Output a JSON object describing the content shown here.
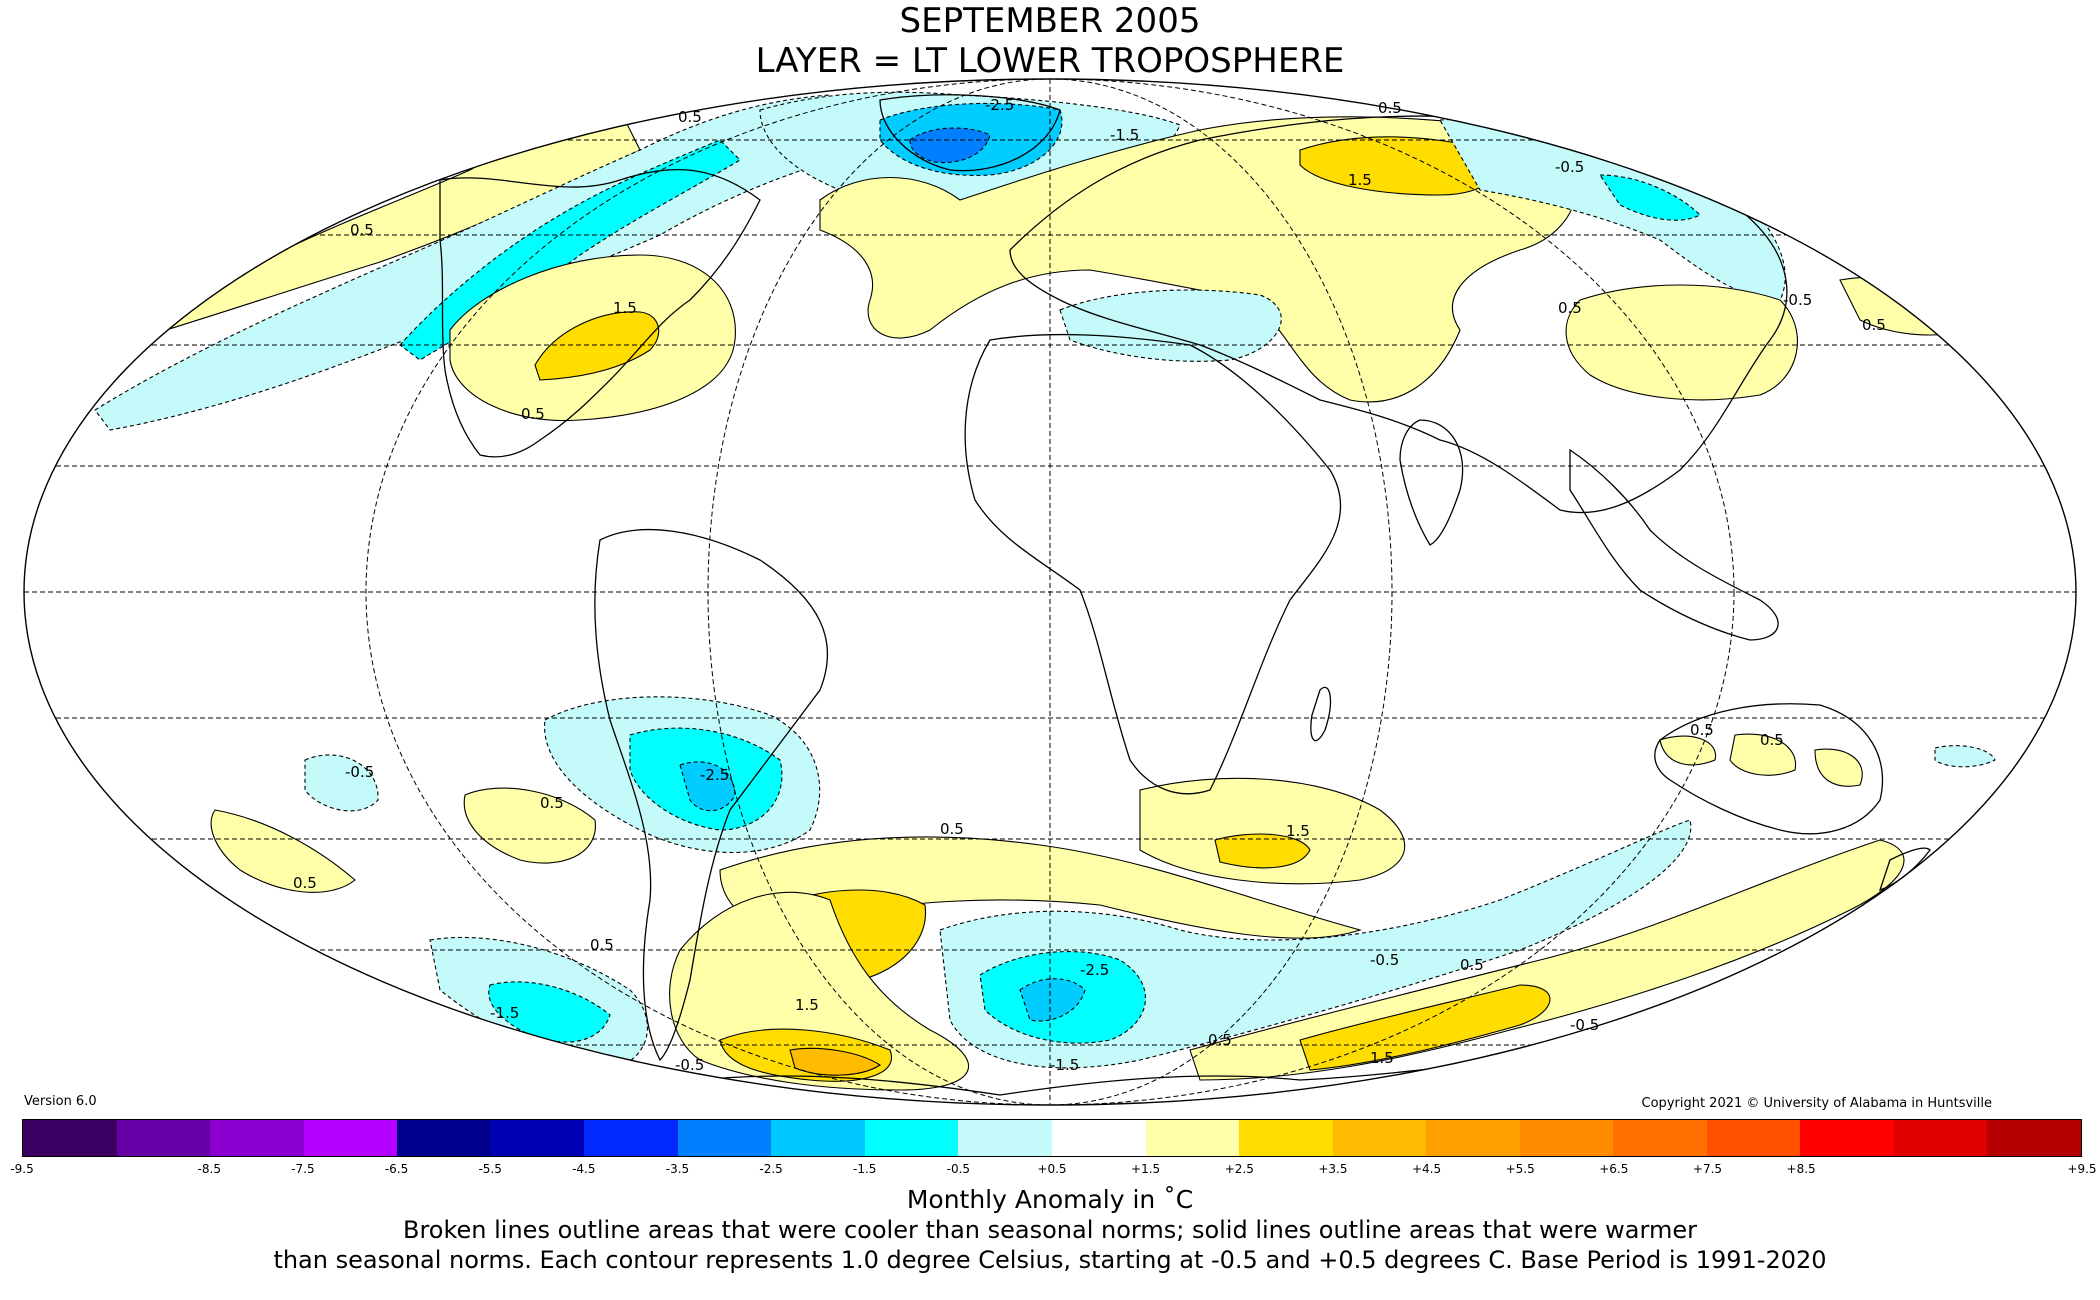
{
  "title": {
    "line1": "SEPTEMBER 2005",
    "line2": "LAYER = LT LOWER TROPOSPHERE"
  },
  "version": "Version 6.0",
  "copyright": "Copyright 2021 © University of Alabama in Huntsville",
  "colors": {
    "ocean": "#ffffff",
    "land_outline": "#000000",
    "neutral": "#ffffff",
    "cool_1": "#c4fafa",
    "cool_2": "#00ffff",
    "cool_3": "#00ccff",
    "cool_4": "#0080ff",
    "warm_1": "#ffffaa",
    "warm_2": "#ffdd00",
    "warm_3": "#ffbb00"
  },
  "colorbar": {
    "colors": [
      "#3c0064",
      "#6400a5",
      "#8c00d2",
      "#b400ff",
      "#00008c",
      "#0000b4",
      "#0028ff",
      "#0080ff",
      "#00c8ff",
      "#00ffff",
      "#c4fafa",
      "#ffffff",
      "#ffffaa",
      "#ffdd00",
      "#ffbb00",
      "#ffa000",
      "#ff8c00",
      "#ff7000",
      "#ff5000",
      "#ff0000",
      "#e00000",
      "#b40000"
    ],
    "ticks": [
      "-9.5",
      "-8.5",
      "-7.5",
      "-6.5",
      "-5.5",
      "-4.5",
      "-3.5",
      "-2.5",
      "-1.5",
      "-0.5",
      "+0.5",
      "+1.5",
      "+2.5",
      "+3.5",
      "+4.5",
      "+5.5",
      "+6.5",
      "+7.5",
      "+8.5",
      "+9.5"
    ]
  },
  "contour_labels": [
    {
      "text": "0.5"
    },
    {
      "text": "0.5"
    },
    {
      "text": "-2.5"
    },
    {
      "text": "0.5"
    },
    {
      "text": "-1.5"
    },
    {
      "text": "1.5"
    },
    {
      "text": "-0.5"
    },
    {
      "text": "0.5"
    },
    {
      "text": "1.5"
    },
    {
      "text": "0.5"
    },
    {
      "text": "0.5"
    },
    {
      "text": "-0.5"
    },
    {
      "text": "0.5"
    },
    {
      "text": "1.5"
    },
    {
      "text": "0.5"
    },
    {
      "text": "-2.5"
    },
    {
      "text": "0.5"
    },
    {
      "text": "0.5"
    },
    {
      "text": "-0.5"
    },
    {
      "text": "1.5"
    },
    {
      "text": "-1.5"
    },
    {
      "text": "-0.5"
    },
    {
      "text": "0.5"
    },
    {
      "text": "0.5"
    },
    {
      "text": "-0.5"
    },
    {
      "text": "1.5"
    },
    {
      "text": "-2.5"
    },
    {
      "text": "-1.5"
    },
    {
      "text": "-0.5"
    },
    {
      "text": "0.5"
    },
    {
      "text": "0.5"
    }
  ],
  "unit_label": "Monthly Anomaly in ˚C",
  "note_line1": "Broken lines outline areas that were cooler than seasonal norms; solid lines outline areas that were warmer",
  "note_line2": "than seasonal norms. Each contour represents 1.0 degree Celsius, starting at -0.5 and +0.5 degrees C. Base Period is 1991-2020"
}
